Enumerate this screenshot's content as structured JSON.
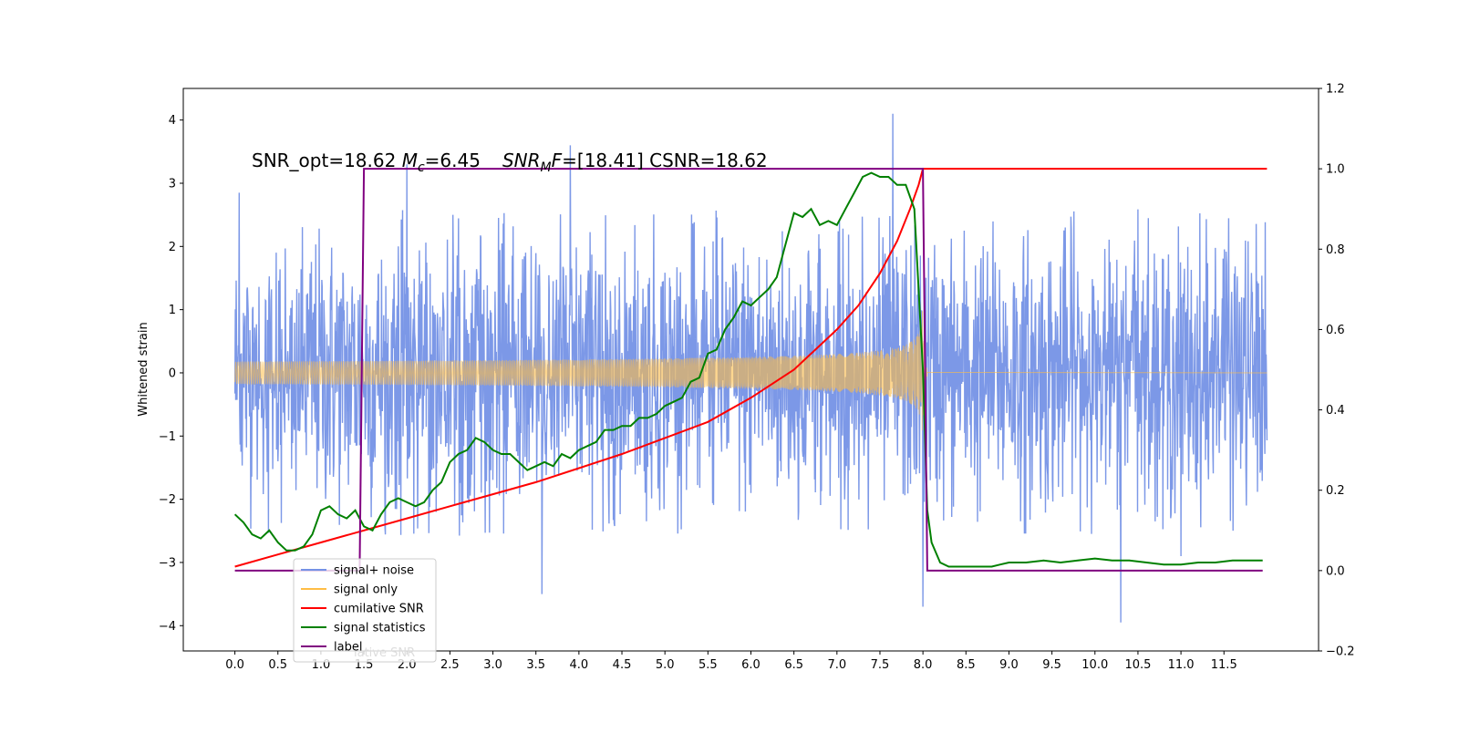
{
  "chart_data": {
    "type": "line",
    "title": "",
    "annotation": {
      "prefix": "SNR_opt=18.62 ",
      "mc_symbol": "M",
      "mc_sub": "c",
      "mc_value": "=6.45",
      "snr_symbol": "SNR",
      "snr_sub": "M",
      "snr_suffix": "F",
      "snr_value": "=[18.41] CSNR=18.62"
    },
    "xlabel": "",
    "ylabel_left": "Whitened strain",
    "ylabel_right": "",
    "xlim": [
      -0.6,
      12.6
    ],
    "ylim_left": [
      -4.4,
      4.5
    ],
    "ylim_right": [
      -0.2,
      1.2
    ],
    "x_ticks": [
      "0.0",
      "0.5",
      "1.0",
      "1.5",
      "2.0",
      "2.5",
      "3.0",
      "3.5",
      "4.0",
      "4.5",
      "5.0",
      "5.5",
      "6.0",
      "6.5",
      "7.0",
      "7.5",
      "8.0",
      "8.5",
      "9.0",
      "9.5",
      "10.0",
      "10.5",
      "11.0",
      "11.5"
    ],
    "y_ticks_left": [
      4,
      3,
      2,
      1,
      0,
      -1,
      -2,
      -3,
      -4
    ],
    "y_ticks_left_labels": [
      "4",
      "3",
      "2",
      "1",
      "0",
      "−1",
      "−2",
      "−3",
      "−4"
    ],
    "y_ticks_right": [
      1.2,
      1.0,
      0.8,
      0.6,
      0.4,
      0.2,
      0.0,
      -0.2
    ],
    "y_ticks_right_labels": [
      "1.2",
      "1.0",
      "0.8",
      "0.6",
      "0.4",
      "0.2",
      "0.0",
      "−0.2"
    ],
    "noise": {
      "name": "signal+ noise",
      "color": "#7592e6",
      "x_range": [
        0.0,
        12.0
      ],
      "envelope_pos": 2.6,
      "envelope_neg": -2.6,
      "peaks": [
        [
          0.05,
          2.85
        ],
        [
          2.0,
          3.3
        ],
        [
          3.9,
          3.6
        ],
        [
          7.65,
          4.1
        ],
        [
          3.57,
          -3.5
        ],
        [
          8.0,
          -3.7
        ],
        [
          10.3,
          -3.95
        ],
        [
          11.0,
          -2.9
        ]
      ]
    },
    "chirp": {
      "name": "signal only",
      "color": "#ffbd45",
      "x_range": [
        0.0,
        8.05
      ],
      "merger_time": 8.0,
      "peak_amplitude": 1.0
    },
    "series": [
      {
        "name": "cumilative SNR",
        "color": "#ff0000",
        "axis": "right",
        "x": [
          0.0,
          0.5,
          1.0,
          1.5,
          2.0,
          2.5,
          3.0,
          3.5,
          4.0,
          4.5,
          5.0,
          5.5,
          6.0,
          6.5,
          7.0,
          7.25,
          7.5,
          7.7,
          7.85,
          7.95,
          8.0,
          8.0,
          12.0
        ],
        "y": [
          0.01,
          0.04,
          0.07,
          0.1,
          0.13,
          0.16,
          0.19,
          0.22,
          0.255,
          0.29,
          0.33,
          0.37,
          0.43,
          0.5,
          0.6,
          0.66,
          0.74,
          0.82,
          0.9,
          0.96,
          1.0,
          1.0,
          1.0
        ]
      },
      {
        "name": "signal statistics",
        "color": "#008000",
        "axis": "right",
        "x": [
          0.0,
          0.1,
          0.2,
          0.3,
          0.4,
          0.5,
          0.6,
          0.7,
          0.8,
          0.9,
          1.0,
          1.1,
          1.2,
          1.3,
          1.4,
          1.5,
          1.6,
          1.7,
          1.8,
          1.9,
          2.0,
          2.1,
          2.2,
          2.3,
          2.4,
          2.5,
          2.6,
          2.7,
          2.8,
          2.9,
          3.0,
          3.1,
          3.2,
          3.3,
          3.4,
          3.5,
          3.6,
          3.7,
          3.8,
          3.9,
          4.0,
          4.1,
          4.2,
          4.3,
          4.4,
          4.5,
          4.6,
          4.7,
          4.8,
          4.9,
          5.0,
          5.1,
          5.2,
          5.3,
          5.4,
          5.5,
          5.6,
          5.7,
          5.8,
          5.9,
          6.0,
          6.1,
          6.2,
          6.3,
          6.4,
          6.5,
          6.6,
          6.7,
          6.8,
          6.9,
          7.0,
          7.1,
          7.2,
          7.3,
          7.4,
          7.5,
          7.6,
          7.7,
          7.8,
          7.9,
          8.0,
          8.05,
          8.1,
          8.2,
          8.3,
          8.4,
          8.5,
          8.6,
          8.7,
          8.8,
          8.9,
          9.0,
          9.2,
          9.4,
          9.6,
          9.8,
          10.0,
          10.2,
          10.4,
          10.6,
          10.8,
          11.0,
          11.2,
          11.4,
          11.6,
          11.8,
          11.95
        ],
        "y": [
          0.14,
          0.12,
          0.09,
          0.08,
          0.1,
          0.07,
          0.05,
          0.05,
          0.06,
          0.09,
          0.15,
          0.16,
          0.14,
          0.13,
          0.15,
          0.11,
          0.1,
          0.14,
          0.17,
          0.18,
          0.17,
          0.16,
          0.17,
          0.2,
          0.22,
          0.27,
          0.29,
          0.3,
          0.33,
          0.32,
          0.3,
          0.29,
          0.29,
          0.27,
          0.25,
          0.26,
          0.27,
          0.26,
          0.29,
          0.28,
          0.3,
          0.31,
          0.32,
          0.35,
          0.35,
          0.36,
          0.36,
          0.38,
          0.38,
          0.39,
          0.41,
          0.42,
          0.43,
          0.47,
          0.48,
          0.54,
          0.55,
          0.6,
          0.63,
          0.67,
          0.66,
          0.68,
          0.7,
          0.73,
          0.81,
          0.89,
          0.88,
          0.9,
          0.86,
          0.87,
          0.86,
          0.9,
          0.94,
          0.98,
          0.99,
          0.98,
          0.98,
          0.96,
          0.96,
          0.9,
          0.5,
          0.15,
          0.07,
          0.02,
          0.01,
          0.01,
          0.01,
          0.01,
          0.01,
          0.01,
          0.015,
          0.02,
          0.02,
          0.025,
          0.02,
          0.025,
          0.03,
          0.025,
          0.025,
          0.02,
          0.015,
          0.015,
          0.02,
          0.02,
          0.025,
          0.025,
          0.025
        ]
      },
      {
        "name": "label",
        "color": "#800080",
        "axis": "right",
        "x": [
          0.0,
          1.45,
          1.5,
          8.0,
          8.05,
          11.95
        ],
        "y": [
          0.0,
          0.0,
          1.0,
          1.0,
          0.0,
          0.0
        ]
      }
    ],
    "legend": {
      "placement": "bottom-left",
      "entries": [
        {
          "label": "signal+ noise",
          "color": "#7592e6"
        },
        {
          "label": "signal only",
          "color": "#ffbd45"
        },
        {
          "label": "cumilative SNR",
          "color": "#ff0000"
        },
        {
          "label": "signal statistics",
          "color": "#008000"
        },
        {
          "label": "label",
          "color": "#800080"
        }
      ],
      "overflow_text": "lative SNR"
    },
    "grid": false
  }
}
